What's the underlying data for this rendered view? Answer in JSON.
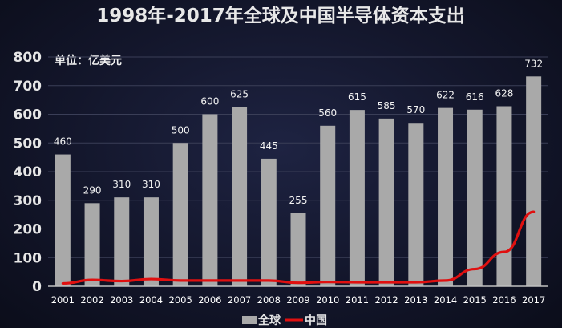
{
  "title": "1998年-2017年全球及中国半导体资本支出",
  "unit_label": "单位：亿美元",
  "colors": {
    "bar": "#a9a9a9",
    "line": "#e01010",
    "text": "#ffffff"
  },
  "chart_data": {
    "type": "bar",
    "title": "1998年-2017年全球及中国半导体资本支出",
    "ylabel": "单位：亿美元",
    "ylim": [
      0,
      800
    ],
    "yticks": [
      0,
      100,
      200,
      300,
      400,
      500,
      600,
      700,
      800
    ],
    "grid": true,
    "legend_placement": "bottom",
    "categories": [
      "2001",
      "2002",
      "2003",
      "2004",
      "2005",
      "2006",
      "2007",
      "2008",
      "2009",
      "2010",
      "2011",
      "2012",
      "2013",
      "2014",
      "2015",
      "2016",
      "2017"
    ],
    "series": [
      {
        "name": "全球",
        "type": "bar",
        "color": "#a9a9a9",
        "values": [
          460,
          290,
          310,
          310,
          500,
          600,
          625,
          445,
          255,
          560,
          615,
          585,
          570,
          622,
          616,
          628,
          732
        ],
        "labels": [
          "460",
          "290",
          "310",
          "310",
          "500",
          "600",
          "625",
          "445",
          "255",
          "560",
          "615",
          "585",
          "570",
          "622",
          "616",
          "628",
          "732"
        ]
      },
      {
        "name": "中国",
        "type": "line",
        "color": "#e01010",
        "values": [
          10,
          22,
          18,
          25,
          20,
          20,
          20,
          20,
          12,
          15,
          14,
          14,
          14,
          20,
          60,
          120,
          260
        ]
      }
    ]
  }
}
